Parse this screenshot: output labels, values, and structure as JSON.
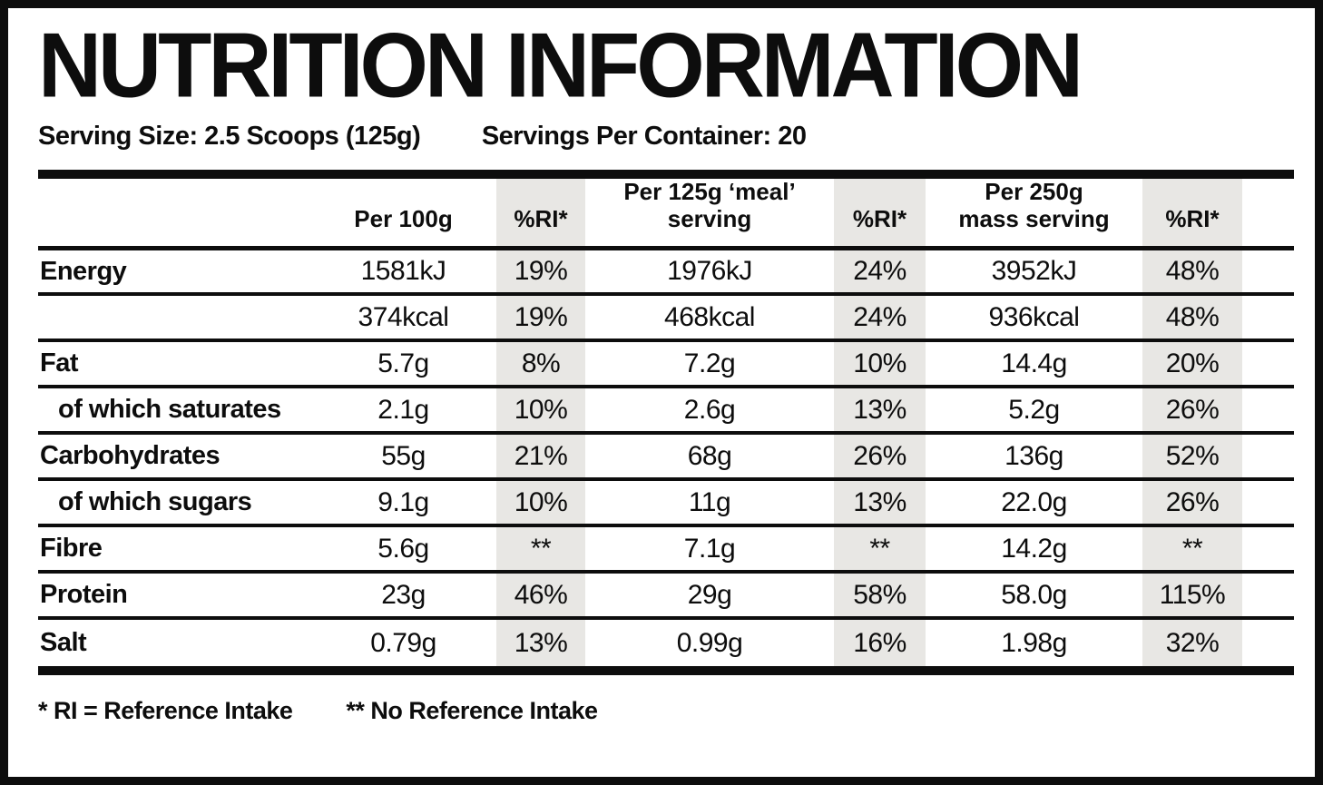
{
  "title": "NUTRITION INFORMATION",
  "serving": {
    "size": "Serving Size: 2.5 Scoops (125g)",
    "per_container": "Servings Per Container: 20"
  },
  "colors": {
    "ink": "#0d0d0d",
    "stripe": "#e8e7e4"
  },
  "table": {
    "headers": [
      "Per 100g",
      "%RI*",
      "Per 125g ‘meal’\nserving",
      "%RI*",
      "Per 250g\nmass serving",
      "%RI*"
    ],
    "rows": [
      {
        "label": "Energy",
        "per100g": "1581kJ",
        "ri100": "19%",
        "per125g": "1976kJ",
        "ri125": "24%",
        "per250g": "3952kJ",
        "ri250": "48%"
      },
      {
        "label": "",
        "per100g": "374kcal",
        "ri100": "19%",
        "per125g": "468kcal",
        "ri125": "24%",
        "per250g": "936kcal",
        "ri250": "48%"
      },
      {
        "label": "Fat",
        "per100g": "5.7g",
        "ri100": "8%",
        "per125g": "7.2g",
        "ri125": "10%",
        "per250g": "14.4g",
        "ri250": "20%"
      },
      {
        "label": "of which saturates",
        "per100g": "2.1g",
        "ri100": "10%",
        "per125g": "2.6g",
        "ri125": "13%",
        "per250g": "5.2g",
        "ri250": "26%"
      },
      {
        "label": "Carbohydrates",
        "per100g": "55g",
        "ri100": "21%",
        "per125g": "68g",
        "ri125": "26%",
        "per250g": "136g",
        "ri250": "52%"
      },
      {
        "label": "of which sugars",
        "per100g": "9.1g",
        "ri100": "10%",
        "per125g": "11g",
        "ri125": "13%",
        "per250g": "22.0g",
        "ri250": "26%"
      },
      {
        "label": "Fibre",
        "per100g": "5.6g",
        "ri100": "**",
        "per125g": "7.1g",
        "ri125": "**",
        "per250g": "14.2g",
        "ri250": "**"
      },
      {
        "label": "Protein",
        "per100g": "23g",
        "ri100": "46%",
        "per125g": "29g",
        "ri125": "58%",
        "per250g": "58.0g",
        "ri250": "115%"
      },
      {
        "label": "Salt",
        "per100g": "0.79g",
        "ri100": "13%",
        "per125g": "0.99g",
        "ri125": "16%",
        "per250g": "1.98g",
        "ri250": "32%"
      }
    ]
  },
  "footnotes": {
    "ri_note": "* RI = Reference Intake",
    "no_ri_note": "** No Reference Intake"
  }
}
